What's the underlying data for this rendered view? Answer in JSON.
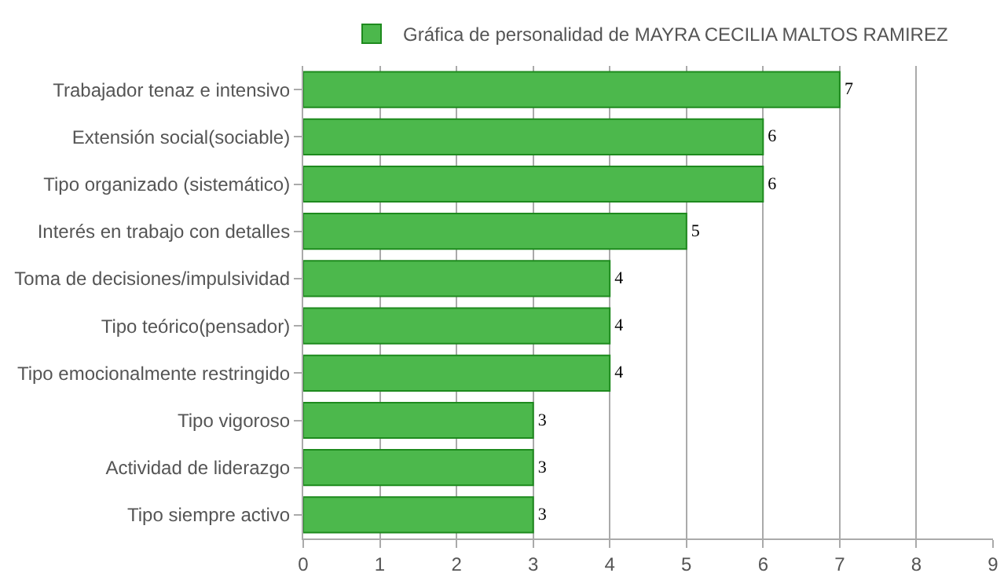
{
  "chart_data": {
    "type": "bar",
    "orientation": "horizontal",
    "categories": [
      "Trabajador tenaz e intensivo",
      "Extensión social(sociable)",
      "Tipo organizado (sistemático)",
      "Interés en trabajo con detalles",
      "Toma de decisiones/impulsividad",
      "Tipo teórico(pensador)",
      "Tipo emocionalmente restringido",
      "Tipo vigoroso",
      "Actividad de liderazgo",
      "Tipo siempre activo"
    ],
    "series": [
      {
        "name": "Gráfica de personalidad de MAYRA CECILIA MALTOS RAMIREZ",
        "color": "#4cb84c",
        "values": [
          7,
          6,
          6,
          5,
          4,
          4,
          4,
          3,
          3,
          3
        ]
      }
    ],
    "xlim": [
      0,
      9
    ],
    "xticks": [
      0,
      1,
      2,
      3,
      4,
      5,
      6,
      7,
      8,
      9
    ],
    "grid": "x",
    "legend": "top",
    "data_labels": true
  }
}
